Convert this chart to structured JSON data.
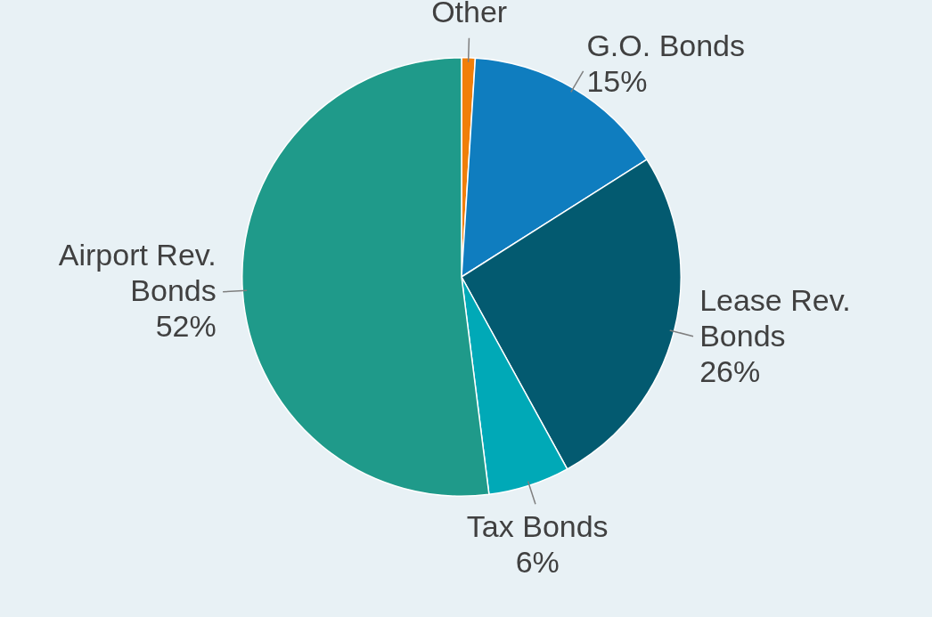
{
  "chart_data": {
    "type": "pie",
    "categories": [
      "Other",
      "G.O. Bonds",
      "Lease Rev. Bonds",
      "Tax Bonds",
      "Airport Rev. Bonds"
    ],
    "values": [
      1,
      15,
      26,
      6,
      52
    ],
    "value_labels": [
      null,
      "15%",
      "26%",
      "6%",
      "52%"
    ],
    "colors": [
      "#f07f09",
      "#0f7dbf",
      "#035a70",
      "#00a9b7",
      "#1f9a8a"
    ],
    "legend": false
  }
}
